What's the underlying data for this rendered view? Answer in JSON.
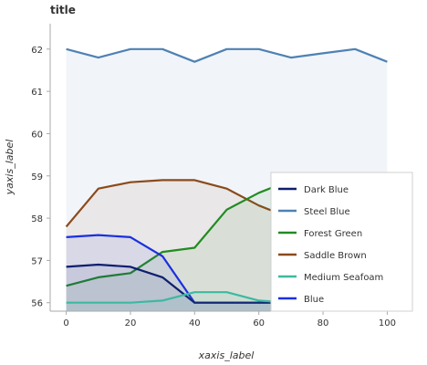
{
  "chart_data": {
    "type": "area",
    "title": "title",
    "xlabel": "xaxis_label",
    "ylabel": "yaxis_label",
    "xlim": [
      -5,
      105
    ],
    "ylim": [
      55.8,
      62.6
    ],
    "x": [
      0,
      10,
      20,
      30,
      40,
      50,
      60,
      70,
      80,
      90,
      100
    ],
    "x_ticks": [
      0,
      20,
      40,
      60,
      80,
      100
    ],
    "y_ticks": [
      56,
      57,
      58,
      59,
      60,
      61,
      62
    ],
    "grid": false,
    "legend_position": "right",
    "series": [
      {
        "name": "Steel Blue",
        "color": "#4f81b4",
        "values": [
          62.0,
          61.8,
          62.0,
          62.0,
          61.7,
          62.0,
          62.0,
          61.8,
          61.9,
          62.0,
          61.7
        ]
      },
      {
        "name": "Saddle Brown",
        "color": "#8b4a1c",
        "values": [
          57.8,
          58.7,
          58.85,
          58.9,
          58.9,
          58.7,
          58.3,
          58.0,
          56.9,
          56.0,
          56.0
        ]
      },
      {
        "name": "Forest Green",
        "color": "#228b22",
        "values": [
          56.4,
          56.6,
          56.7,
          57.2,
          57.3,
          58.2,
          58.6,
          58.9,
          57.7,
          56.0,
          56.0
        ]
      },
      {
        "name": "Blue",
        "color": "#1a2fe0",
        "values": [
          57.55,
          57.6,
          57.55,
          57.1,
          56.0,
          56.0,
          56.0,
          56.0,
          56.0,
          56.0,
          56.0
        ]
      },
      {
        "name": "Dark Blue",
        "color": "#0e1e6f",
        "values": [
          56.85,
          56.9,
          56.85,
          56.6,
          56.0,
          56.0,
          56.0,
          56.0,
          56.0,
          56.0,
          56.0
        ]
      },
      {
        "name": "Medium Seafoam",
        "color": "#3cb9a0",
        "values": [
          56.0,
          56.0,
          56.0,
          56.05,
          56.25,
          56.25,
          56.05,
          56.0,
          56.0,
          56.0,
          56.0
        ]
      }
    ],
    "legend_order": [
      "Dark Blue",
      "Steel Blue",
      "Forest Green",
      "Saddle Brown",
      "Medium Seafoam",
      "Blue"
    ]
  }
}
